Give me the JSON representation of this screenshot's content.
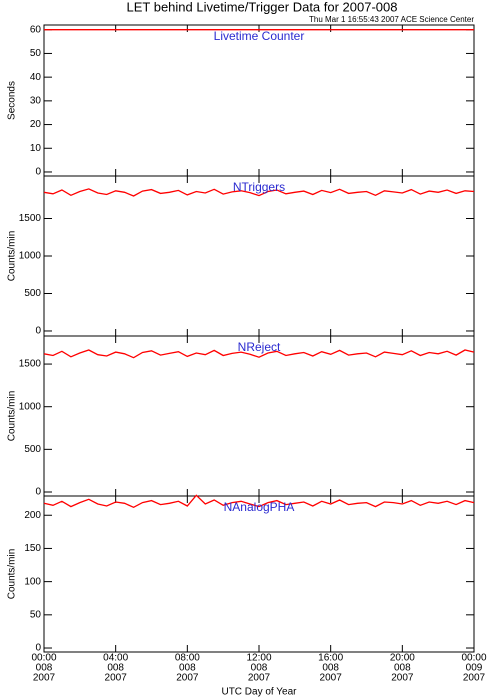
{
  "title": "LET behind Livetime/Trigger Data for 2007-008",
  "subtitle": "Thu Mar  1 16:55:43 2007 ACE Science Center",
  "x_axis": {
    "label": "UTC Day of Year",
    "xlim": [
      0,
      24
    ],
    "xticks": [
      {
        "value": 0,
        "label": "00:00"
      },
      {
        "value": 4,
        "label": "04:00"
      },
      {
        "value": 8,
        "label": "08:00"
      },
      {
        "value": 12,
        "label": "12:00"
      },
      {
        "value": 16,
        "label": "16:00"
      },
      {
        "value": 20,
        "label": "20:00"
      },
      {
        "value": 24,
        "label": "00:00"
      }
    ],
    "day": [
      "008",
      "008",
      "008",
      "008",
      "008",
      "008",
      "009"
    ],
    "year": [
      "2007",
      "2007",
      "2007",
      "2007",
      "2007",
      "2007",
      "2007"
    ]
  },
  "chart_data": [
    {
      "type": "line",
      "annotation": "Livetime Counter",
      "ylabel": "Seconds",
      "ylim": [
        -1.7,
        62
      ],
      "yticks": [
        0,
        10,
        20,
        30,
        40,
        50,
        60
      ],
      "x": [
        0,
        0.5,
        1,
        1.5,
        2,
        2.5,
        3,
        3.5,
        4,
        4.5,
        5,
        5.5,
        6,
        6.5,
        7,
        7.5,
        8,
        8.5,
        9,
        9.5,
        10,
        10.5,
        11,
        11.5,
        12,
        12.5,
        13,
        13.5,
        14,
        14.5,
        15,
        15.5,
        16,
        16.5,
        17,
        17.5,
        18,
        18.5,
        19,
        19.5,
        20,
        20.5,
        21,
        21.5,
        22,
        22.5,
        23,
        23.5,
        24
      ],
      "series": [
        {
          "color": "#ff0000",
          "values": [
            60,
            60,
            60,
            60,
            60,
            60,
            60,
            60,
            60,
            60,
            60,
            60,
            60,
            60,
            60,
            60,
            60,
            60,
            60,
            60,
            60,
            60,
            60,
            60,
            60,
            60,
            60,
            60,
            60,
            60,
            60,
            60,
            60,
            60,
            60,
            60,
            60,
            60,
            60,
            60,
            60,
            60,
            60,
            60,
            60,
            60,
            60,
            60,
            60
          ]
        }
      ]
    },
    {
      "type": "line",
      "annotation": "NTriggers",
      "ylabel": "Counts/min",
      "ylim": [
        -67,
        2067
      ],
      "yticks": [
        0,
        500,
        1000,
        1500
      ],
      "x": [
        0,
        0.5,
        1,
        1.5,
        2,
        2.5,
        3,
        3.5,
        4,
        4.5,
        5,
        5.5,
        6,
        6.5,
        7,
        7.5,
        8,
        8.5,
        9,
        9.5,
        10,
        10.5,
        11,
        11.5,
        12,
        12.5,
        13,
        13.5,
        14,
        14.5,
        15,
        15.5,
        16,
        16.5,
        17,
        17.5,
        18,
        18.5,
        19,
        19.5,
        20,
        20.5,
        21,
        21.5,
        22,
        22.5,
        23,
        23.5,
        24
      ],
      "series": [
        {
          "color": "#ff0000",
          "values": [
            1850,
            1830,
            1880,
            1810,
            1860,
            1895,
            1840,
            1820,
            1870,
            1850,
            1800,
            1865,
            1885,
            1835,
            1850,
            1875,
            1815,
            1860,
            1840,
            1890,
            1825,
            1855,
            1870,
            1845,
            1805,
            1860,
            1880,
            1830,
            1850,
            1865,
            1820,
            1875,
            1845,
            1890,
            1835,
            1850,
            1860,
            1810,
            1870,
            1855,
            1840,
            1885,
            1825,
            1865,
            1850,
            1880,
            1835,
            1870,
            1860
          ]
        }
      ]
    },
    {
      "type": "line",
      "annotation": "NReject",
      "ylabel": "Counts/min",
      "ylim": [
        -47,
        1829
      ],
      "yticks": [
        0,
        500,
        1000,
        1500
      ],
      "x": [
        0,
        0.5,
        1,
        1.5,
        2,
        2.5,
        3,
        3.5,
        4,
        4.5,
        5,
        5.5,
        6,
        6.5,
        7,
        7.5,
        8,
        8.5,
        9,
        9.5,
        10,
        10.5,
        11,
        11.5,
        12,
        12.5,
        13,
        13.5,
        14,
        14.5,
        15,
        15.5,
        16,
        16.5,
        17,
        17.5,
        18,
        18.5,
        19,
        19.5,
        20,
        20.5,
        21,
        21.5,
        22,
        22.5,
        23,
        23.5,
        24
      ],
      "series": [
        {
          "color": "#ff0000",
          "values": [
            1620,
            1600,
            1650,
            1585,
            1630,
            1665,
            1610,
            1595,
            1640,
            1620,
            1575,
            1635,
            1655,
            1605,
            1625,
            1645,
            1590,
            1630,
            1610,
            1660,
            1600,
            1625,
            1640,
            1615,
            1580,
            1630,
            1650,
            1600,
            1620,
            1635,
            1595,
            1645,
            1615,
            1660,
            1605,
            1620,
            1630,
            1585,
            1640,
            1625,
            1610,
            1655,
            1600,
            1635,
            1620,
            1650,
            1605,
            1665,
            1640
          ]
        }
      ]
    },
    {
      "type": "line",
      "annotation": "NAnalogPHA",
      "ylabel": "Counts/min",
      "ylim": [
        -6,
        229
      ],
      "yticks": [
        0,
        50,
        100,
        150,
        200
      ],
      "x": [
        0,
        0.5,
        1,
        1.5,
        2,
        2.5,
        3,
        3.5,
        4,
        4.5,
        5,
        5.5,
        6,
        6.5,
        7,
        7.5,
        8,
        8.5,
        9,
        9.5,
        10,
        10.5,
        11,
        11.5,
        12,
        12.5,
        13,
        13.5,
        14,
        14.5,
        15,
        15.5,
        16,
        16.5,
        17,
        17.5,
        18,
        18.5,
        19,
        19.5,
        20,
        20.5,
        21,
        21.5,
        22,
        22.5,
        23,
        23.5,
        24
      ],
      "series": [
        {
          "color": "#ff0000",
          "values": [
            218,
            215,
            221,
            213,
            219,
            224,
            217,
            214,
            220,
            218,
            212,
            219,
            222,
            216,
            218,
            221,
            214,
            230,
            217,
            223,
            215,
            219,
            221,
            217,
            213,
            219,
            222,
            216,
            218,
            220,
            214,
            221,
            217,
            223,
            216,
            218,
            219,
            213,
            220,
            219,
            217,
            222,
            215,
            220,
            218,
            221,
            216,
            222,
            219
          ]
        }
      ]
    }
  ]
}
